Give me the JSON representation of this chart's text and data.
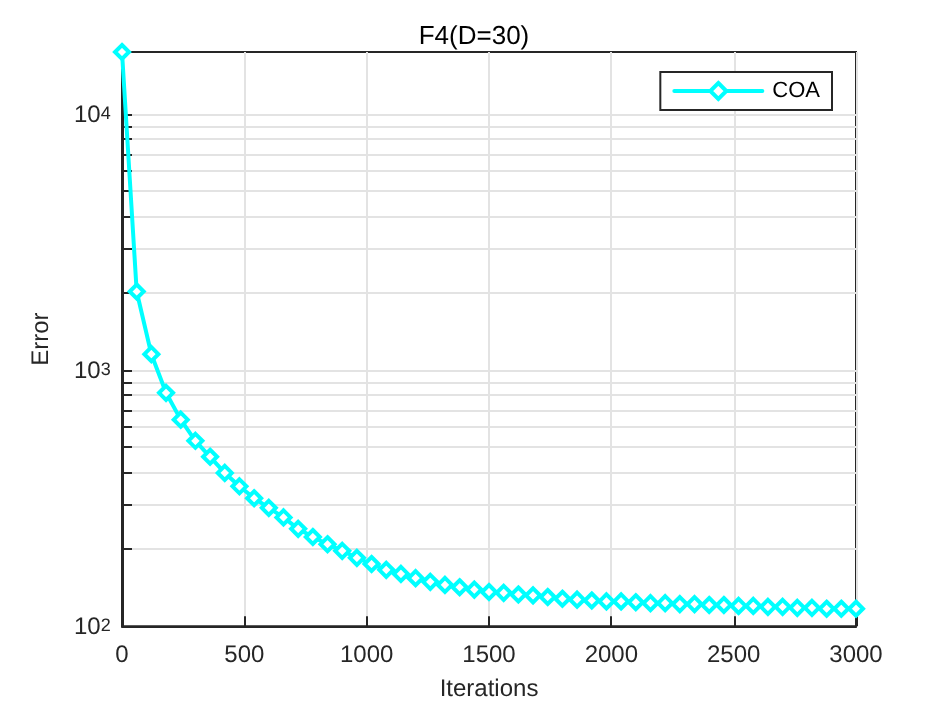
{
  "chart_data": {
    "type": "line",
    "title": "F4(D=30)",
    "xlabel": "Iterations",
    "ylabel": "Error",
    "x": [
      0,
      60,
      120,
      180,
      240,
      300,
      360,
      420,
      480,
      540,
      600,
      660,
      720,
      780,
      840,
      900,
      960,
      1020,
      1080,
      1140,
      1200,
      1260,
      1320,
      1380,
      1440,
      1500,
      1560,
      1620,
      1680,
      1740,
      1800,
      1860,
      1920,
      1980,
      2040,
      2100,
      2160,
      2220,
      2280,
      2340,
      2400,
      2460,
      2520,
      2580,
      2640,
      2700,
      2760,
      2820,
      2880,
      2940,
      3000
    ],
    "series": [
      {
        "name": "COA",
        "color": "#00ffff",
        "values": [
          17500,
          2030,
          1155,
          816,
          641,
          530,
          459,
          397,
          352,
          316,
          290,
          266,
          240,
          223,
          209,
          197,
          185,
          175,
          166,
          160,
          154,
          149,
          145,
          142,
          139,
          136,
          135,
          133,
          132,
          130,
          128,
          127,
          126,
          125,
          125,
          124,
          123,
          123,
          122,
          122,
          121,
          121,
          120,
          120,
          119,
          119,
          118,
          118,
          117,
          117,
          117
        ]
      }
    ],
    "xlim": [
      0,
      3000
    ],
    "xticks": [
      0,
      500,
      1000,
      1500,
      2000,
      2500,
      3000
    ],
    "ylim": [
      100,
      17500
    ],
    "yticks": [
      {
        "value": 100,
        "label": "10$^{2}$"
      },
      {
        "value": 200,
        "label": null
      },
      {
        "value": 300,
        "label": null
      },
      {
        "value": 400,
        "label": null
      },
      {
        "value": 500,
        "label": null
      },
      {
        "value": 600,
        "label": null
      },
      {
        "value": 700,
        "label": null
      },
      {
        "value": 800,
        "label": null
      },
      {
        "value": 900,
        "label": null
      },
      {
        "value": 1000,
        "label": "10$^{3}$"
      },
      {
        "value": 2000,
        "label": null
      },
      {
        "value": 3000,
        "label": null
      },
      {
        "value": 4000,
        "label": null
      },
      {
        "value": 5000,
        "label": null
      },
      {
        "value": 6000,
        "label": null
      },
      {
        "value": 7000,
        "label": null
      },
      {
        "value": 8000,
        "label": null
      },
      {
        "value": 9000,
        "label": null
      },
      {
        "value": 10000,
        "label": "10$^{4}$"
      }
    ],
    "log": "y",
    "grid": true,
    "legend": "top right",
    "marker": "diamond",
    "line_style": "solid"
  }
}
